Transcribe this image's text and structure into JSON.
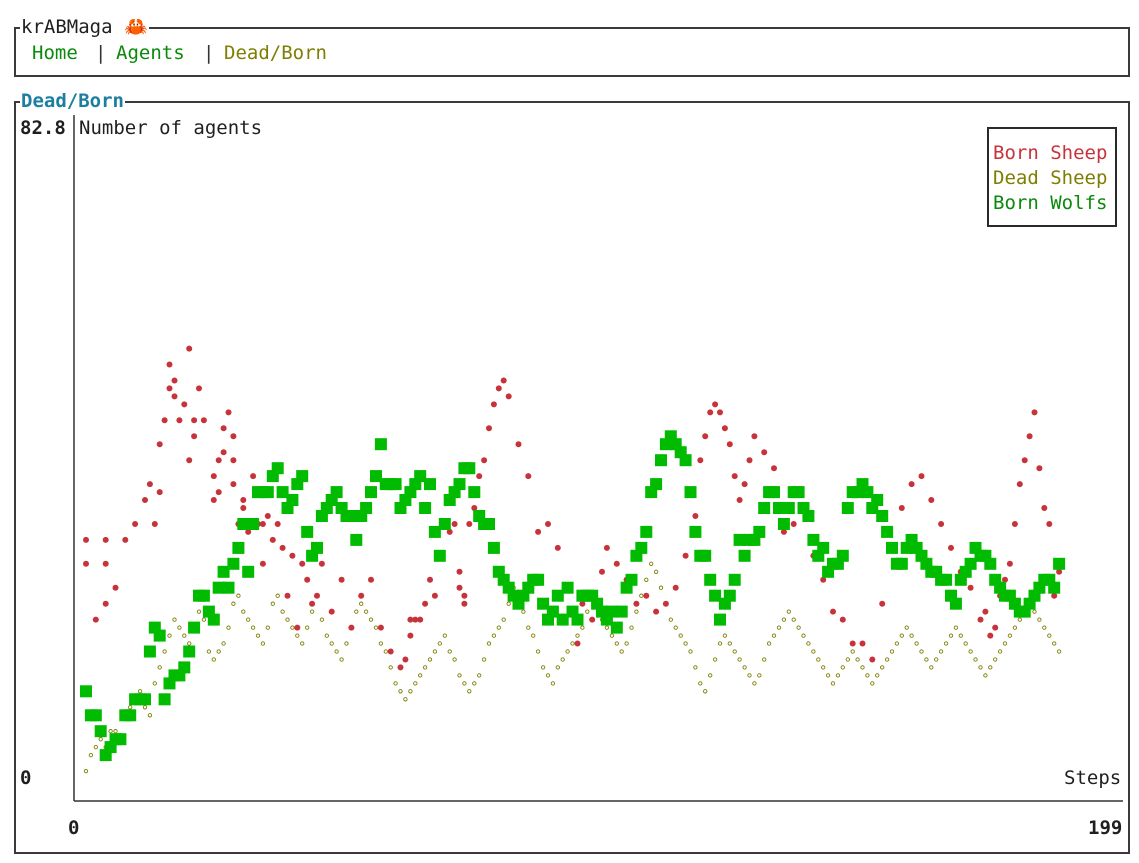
{
  "app": {
    "title": "krABMaga 🦀"
  },
  "tabs": [
    {
      "label": "Home",
      "active": false
    },
    {
      "label": "Agents",
      "active": false
    },
    {
      "label": "Dead/Born",
      "active": true
    }
  ],
  "tab_separator": "|",
  "panel": {
    "title": "Dead/Born"
  },
  "colors": {
    "born_sheep": "#c8323a",
    "dead_sheep": "#7e7e00",
    "born_wolfs": "#00bb00",
    "panel_title": "#1c7ea0",
    "tab_inactive": "#0a8a0a",
    "tab_active": "#7e7e00"
  },
  "chart_data": {
    "type": "scatter",
    "title": "",
    "ylabel": "Number of agents",
    "xlabel": "Steps",
    "y_min_label": "0",
    "y_max_label": "82.8",
    "x_min_label": "0",
    "x_max_label": "199",
    "xlim": [
      0,
      199
    ],
    "ylim": [
      0,
      82.8
    ],
    "legend_position": "top-right",
    "series": [
      {
        "name": "Born Sheep",
        "color": "#c8323a",
        "x": [
          0,
          0,
          2,
          4,
          4,
          4,
          6,
          8,
          10,
          12,
          13,
          14,
          15,
          15,
          16,
          17,
          17,
          18,
          18,
          19,
          20,
          21,
          21,
          22,
          22,
          23,
          24,
          26,
          26,
          27,
          27,
          28,
          28,
          29,
          30,
          30,
          30,
          31,
          32,
          32,
          33,
          34,
          35,
          36,
          36,
          37,
          38,
          39,
          40,
          41,
          42,
          43,
          44,
          45,
          46,
          47,
          48,
          50,
          52,
          54,
          56,
          58,
          60,
          62,
          64,
          65,
          66,
          66,
          67,
          68,
          69,
          70,
          71,
          72,
          73,
          74,
          75,
          76,
          76,
          77,
          77,
          78,
          79,
          80,
          81,
          82,
          83,
          84,
          85,
          86,
          88,
          90,
          92,
          94,
          96,
          98,
          99,
          100,
          101,
          102,
          103,
          104,
          105,
          106,
          108,
          110,
          112,
          114,
          116,
          118,
          120,
          122,
          124,
          125,
          126,
          127,
          128,
          129,
          130,
          131,
          132,
          133,
          134,
          135,
          136,
          138,
          140,
          142,
          144,
          146,
          148,
          150,
          152,
          154,
          156,
          158,
          160,
          162,
          164,
          166,
          168,
          170,
          172,
          174,
          176,
          178,
          180,
          182,
          183,
          184,
          185,
          186,
          187,
          188,
          189,
          190,
          191,
          192,
          193,
          194,
          195,
          196,
          197,
          198
        ],
        "y": [
          28,
          31,
          21,
          28,
          31,
          23,
          25,
          31,
          33,
          36,
          38,
          33,
          37,
          43,
          46,
          50,
          53,
          51,
          49,
          46,
          48,
          41,
          55,
          46,
          44,
          50,
          46,
          39,
          36,
          37,
          41,
          45,
          42,
          47,
          41,
          44,
          38,
          33,
          35,
          36,
          32,
          39,
          33,
          28,
          33,
          34,
          31,
          33,
          30,
          24,
          29,
          20,
          28,
          26,
          23,
          24,
          28,
          22,
          26,
          20,
          24,
          26,
          20,
          17,
          15,
          16,
          19,
          21,
          21,
          21,
          23,
          26,
          24,
          29,
          33,
          32,
          33,
          27,
          25,
          23,
          24,
          33,
          35,
          39,
          41,
          45,
          48,
          50,
          51,
          49,
          43,
          39,
          32,
          33,
          30,
          25,
          22,
          18,
          23,
          24,
          21,
          23,
          27,
          30,
          28,
          26,
          23,
          24,
          22,
          23,
          25,
          29,
          34,
          41,
          44,
          47,
          48,
          47,
          45,
          43,
          39,
          36,
          38,
          41,
          44,
          42,
          40,
          32,
          33,
          35,
          29,
          26,
          22,
          21,
          18,
          18,
          16,
          23,
          30,
          35,
          38,
          39,
          36,
          33,
          30,
          27,
          25,
          21,
          22,
          19,
          20,
          24,
          26,
          28,
          33,
          38,
          41,
          44,
          47,
          40,
          35,
          33,
          24,
          27
        ]
      },
      {
        "name": "Dead Sheep",
        "color": "#7e7e00",
        "x": [
          0,
          1,
          2,
          3,
          4,
          5,
          6,
          7,
          8,
          9,
          10,
          11,
          12,
          13,
          14,
          15,
          16,
          17,
          18,
          19,
          20,
          21,
          22,
          23,
          24,
          25,
          26,
          27,
          28,
          29,
          30,
          31,
          32,
          33,
          34,
          35,
          36,
          37,
          38,
          39,
          40,
          41,
          42,
          43,
          44,
          45,
          46,
          47,
          48,
          49,
          50,
          51,
          52,
          53,
          54,
          55,
          56,
          57,
          58,
          59,
          60,
          61,
          62,
          63,
          64,
          65,
          66,
          67,
          68,
          69,
          70,
          71,
          72,
          73,
          74,
          75,
          76,
          77,
          78,
          79,
          80,
          81,
          82,
          83,
          84,
          85,
          86,
          87,
          88,
          89,
          90,
          91,
          92,
          93,
          94,
          95,
          96,
          97,
          98,
          99,
          100,
          101,
          102,
          103,
          104,
          105,
          106,
          107,
          108,
          109,
          110,
          111,
          112,
          113,
          114,
          115,
          116,
          117,
          118,
          119,
          120,
          121,
          122,
          123,
          124,
          125,
          126,
          127,
          128,
          129,
          130,
          131,
          132,
          133,
          134,
          135,
          136,
          137,
          138,
          139,
          140,
          141,
          142,
          143,
          144,
          145,
          146,
          147,
          148,
          149,
          150,
          151,
          152,
          153,
          154,
          155,
          156,
          157,
          158,
          159,
          160,
          161,
          162,
          163,
          164,
          165,
          166,
          167,
          168,
          169,
          170,
          171,
          172,
          173,
          174,
          175,
          176,
          177,
          178,
          179,
          180,
          181,
          182,
          183,
          184,
          185,
          186,
          187,
          188,
          189,
          190,
          191,
          192,
          193,
          194,
          195,
          196,
          197,
          198
        ],
        "y": [
          2,
          4,
          5,
          6,
          5,
          7,
          7,
          6,
          9,
          10,
          11,
          12,
          10,
          9,
          13,
          15,
          17,
          19,
          21,
          20,
          19,
          18,
          20,
          22,
          21,
          17,
          16,
          17,
          18,
          20,
          23,
          24,
          22,
          21,
          20,
          19,
          18,
          20,
          23,
          24,
          22,
          21,
          20,
          19,
          18,
          20,
          22,
          24,
          21,
          19,
          18,
          17,
          16,
          18,
          20,
          22,
          23,
          22,
          21,
          20,
          18,
          17,
          15,
          13,
          12,
          11,
          12,
          13,
          14,
          15,
          16,
          17,
          18,
          19,
          17,
          16,
          14,
          13,
          12,
          13,
          14,
          16,
          18,
          19,
          20,
          21,
          23,
          25,
          24,
          22,
          20,
          19,
          17,
          15,
          14,
          13,
          15,
          16,
          17,
          18,
          19,
          20,
          22,
          24,
          23,
          21,
          20,
          19,
          18,
          17,
          18,
          20,
          22,
          24,
          26,
          28,
          27,
          25,
          23,
          21,
          20,
          19,
          18,
          17,
          15,
          13,
          12,
          14,
          16,
          18,
          19,
          18,
          17,
          16,
          15,
          14,
          13,
          14,
          16,
          18,
          19,
          20,
          21,
          22,
          21,
          20,
          19,
          18,
          17,
          16,
          15,
          14,
          13,
          14,
          15,
          16,
          17,
          16,
          15,
          14,
          13,
          14,
          15,
          16,
          17,
          18,
          19,
          20,
          19,
          18,
          17,
          16,
          15,
          16,
          17,
          18,
          19,
          20,
          19,
          18,
          17,
          16,
          15,
          14,
          15,
          16,
          17,
          18,
          19,
          20,
          21,
          22,
          23,
          22,
          21,
          20,
          19,
          18,
          17
        ]
      },
      {
        "name": "Born Wolfs",
        "color": "#00bb00",
        "x": [
          0,
          1,
          2,
          3,
          4,
          5,
          6,
          7,
          8,
          9,
          10,
          11,
          12,
          13,
          14,
          15,
          16,
          17,
          18,
          19,
          20,
          21,
          22,
          23,
          24,
          25,
          26,
          27,
          28,
          29,
          30,
          31,
          32,
          33,
          34,
          35,
          36,
          37,
          38,
          39,
          40,
          41,
          42,
          43,
          44,
          45,
          46,
          47,
          48,
          49,
          50,
          51,
          52,
          53,
          54,
          55,
          56,
          57,
          58,
          59,
          60,
          61,
          62,
          63,
          64,
          65,
          66,
          67,
          68,
          69,
          70,
          71,
          72,
          73,
          74,
          75,
          76,
          77,
          78,
          79,
          80,
          81,
          82,
          83,
          84,
          85,
          86,
          87,
          88,
          89,
          90,
          91,
          92,
          93,
          94,
          95,
          96,
          97,
          98,
          99,
          100,
          101,
          102,
          103,
          104,
          105,
          106,
          107,
          108,
          109,
          110,
          111,
          112,
          113,
          114,
          115,
          116,
          117,
          118,
          119,
          120,
          121,
          122,
          123,
          124,
          125,
          126,
          127,
          128,
          129,
          130,
          131,
          132,
          133,
          134,
          135,
          136,
          137,
          138,
          139,
          140,
          141,
          142,
          143,
          144,
          145,
          146,
          147,
          148,
          149,
          150,
          151,
          152,
          153,
          154,
          155,
          156,
          157,
          158,
          159,
          160,
          161,
          162,
          163,
          164,
          165,
          166,
          167,
          168,
          169,
          170,
          171,
          172,
          173,
          174,
          175,
          176,
          177,
          178,
          179,
          180,
          181,
          182,
          183,
          184,
          185,
          186,
          187,
          188,
          189,
          190,
          191,
          192,
          193,
          194,
          195,
          196,
          197,
          198
        ],
        "y": [
          12,
          9,
          9,
          7,
          4,
          5,
          6,
          6,
          9,
          9,
          11,
          11,
          11,
          17,
          20,
          19,
          11,
          13,
          14,
          14,
          15,
          17,
          20,
          24,
          24,
          22,
          21,
          25,
          27,
          25,
          28,
          30,
          33,
          27,
          33,
          37,
          37,
          37,
          39,
          40,
          37,
          35,
          36,
          38,
          39,
          32,
          29,
          30,
          34,
          35,
          36,
          37,
          35,
          34,
          34,
          31,
          34,
          35,
          37,
          39,
          43,
          38,
          38,
          38,
          35,
          36,
          37,
          38,
          39,
          35,
          38,
          32,
          29,
          33,
          36,
          37,
          38,
          40,
          40,
          37,
          34,
          33,
          33,
          30,
          27,
          26,
          25,
          24,
          23,
          24,
          25,
          26,
          26,
          23,
          21,
          22,
          24,
          21,
          25,
          22,
          21,
          24,
          24,
          24,
          23,
          22,
          21,
          22,
          20,
          22,
          25,
          26,
          29,
          30,
          32,
          37,
          38,
          41,
          43,
          44,
          43,
          42,
          41,
          37,
          32,
          29,
          29,
          26,
          24,
          21,
          23,
          24,
          26,
          31,
          29,
          31,
          31,
          32,
          35,
          37,
          37,
          35,
          33,
          35,
          37,
          37,
          35,
          34,
          31,
          29,
          30,
          27,
          28,
          28,
          29,
          35,
          37,
          37,
          38,
          37,
          35,
          36,
          34,
          32,
          30,
          28,
          28,
          30,
          31,
          30,
          29,
          28,
          27,
          27,
          26,
          26,
          24,
          23,
          26,
          27,
          28,
          30,
          29,
          29,
          28,
          26,
          25,
          24,
          24,
          23,
          22,
          22,
          23,
          24,
          25,
          26,
          26,
          25,
          28
        ]
      }
    ]
  }
}
